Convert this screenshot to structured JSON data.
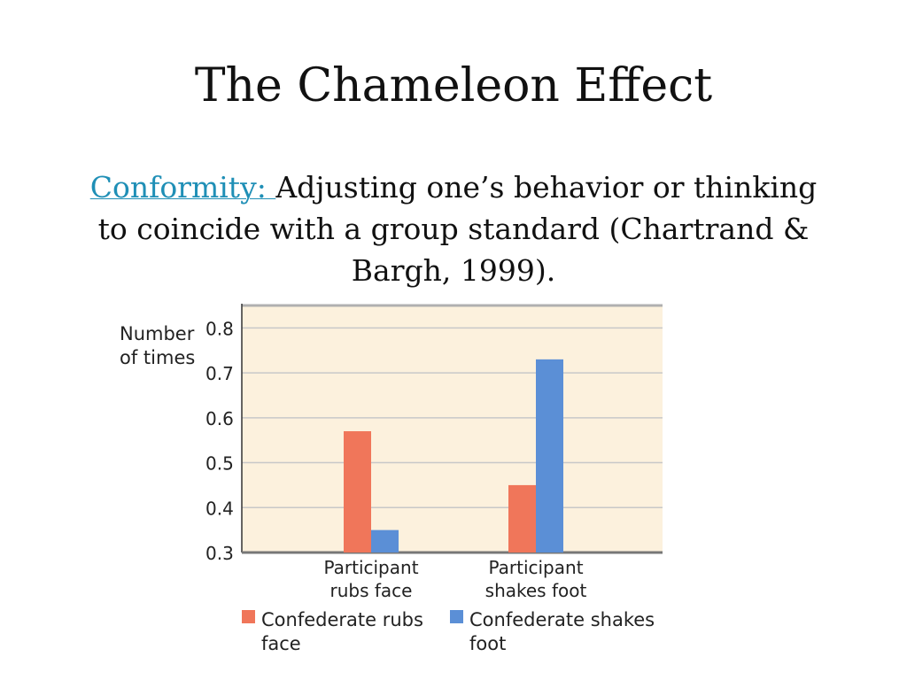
{
  "slide": {
    "title": "The Chameleon Effect",
    "definition_term": "Conformity: ",
    "definition_text": "Adjusting one’s behavior or thinking to coincide with a group standard (Chartrand & Bargh, 1999)."
  },
  "chart_data": {
    "type": "bar",
    "title": "",
    "xlabel": "",
    "ylabel": [
      "Number",
      "of times"
    ],
    "ylim": [
      0.3,
      0.85
    ],
    "yticks": [
      0.3,
      0.4,
      0.5,
      0.6,
      0.7,
      0.8
    ],
    "ytick_labels": [
      "0.3",
      "0.4",
      "0.5",
      "0.6",
      "0.7",
      "0.8"
    ],
    "grid": true,
    "categories": [
      [
        "Participant",
        "rubs face"
      ],
      [
        "Participant",
        "shakes foot"
      ]
    ],
    "series": [
      {
        "name": [
          "Confederate rubs",
          "face"
        ],
        "values": [
          0.57,
          0.45
        ],
        "color": "#f0765a"
      },
      {
        "name": [
          "Confederate shakes",
          "foot"
        ],
        "values": [
          0.35,
          0.73
        ],
        "color": "#5b8fd6"
      }
    ],
    "legend_position": "bottom",
    "plot_background": "#fcf1dd",
    "grid_color": "#c8c8c8"
  }
}
